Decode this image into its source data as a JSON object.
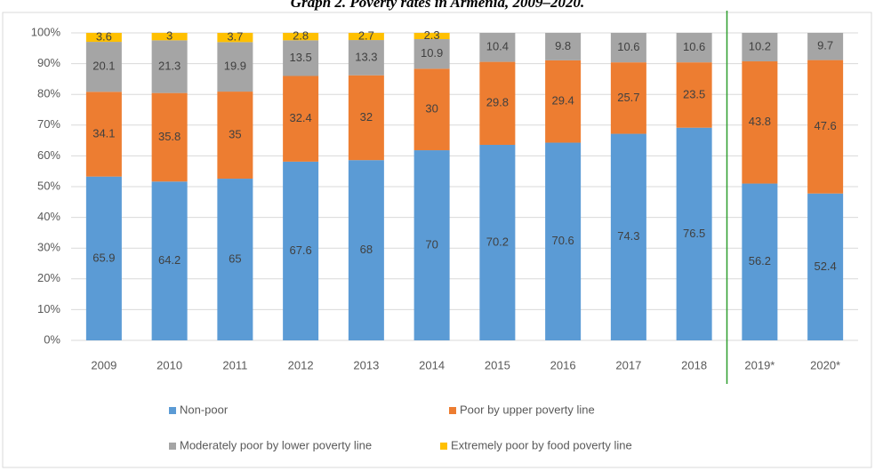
{
  "chart_data": {
    "type": "bar",
    "stacking": "percent",
    "title": "Graph 2. Poverty rates in Armenia, 2009–2020.",
    "categories": [
      "2009",
      "2010",
      "2011",
      "2012",
      "2013",
      "2014",
      "2015",
      "2016",
      "2017",
      "2018",
      "2019*",
      "2020*"
    ],
    "series": [
      {
        "name": "Non-poor",
        "color": "#5b9bd5",
        "values": [
          65.9,
          64.2,
          65,
          67.6,
          68,
          70,
          70.2,
          70.6,
          74.3,
          76.5,
          56.2,
          52.4
        ]
      },
      {
        "name": "Poor by upper poverty line",
        "color": "#ed7d31",
        "values": [
          34.1,
          35.8,
          35,
          32.4,
          32,
          30,
          29.8,
          29.4,
          25.7,
          23.5,
          43.8,
          47.6
        ]
      },
      {
        "name": "Moderately poor by lower poverty line",
        "color": "#a5a5a5",
        "values": [
          20.1,
          21.3,
          19.9,
          13.5,
          13.3,
          10.9,
          10.4,
          9.8,
          10.6,
          10.6,
          10.2,
          9.7
        ]
      },
      {
        "name": "Extremely poor by food poverty line",
        "color": "#ffc000",
        "values": [
          3.6,
          3,
          3.7,
          2.8,
          2.7,
          2.3,
          null,
          null,
          null,
          null,
          null,
          null
        ]
      }
    ],
    "ylim": [
      0,
      100
    ],
    "yticks": [
      {
        "value": 0,
        "label": "0%"
      },
      {
        "value": 10,
        "label": "10%"
      },
      {
        "value": 20,
        "label": "20%"
      },
      {
        "value": 30,
        "label": "30%"
      },
      {
        "value": 40,
        "label": "40%"
      },
      {
        "value": 50,
        "label": "50%"
      },
      {
        "value": 60,
        "label": "60%"
      },
      {
        "value": 70,
        "label": "70%"
      },
      {
        "value": 80,
        "label": "80%"
      },
      {
        "value": 90,
        "label": "90%"
      },
      {
        "value": 100,
        "label": "100%"
      }
    ],
    "grid": true,
    "legend": "bottom"
  }
}
